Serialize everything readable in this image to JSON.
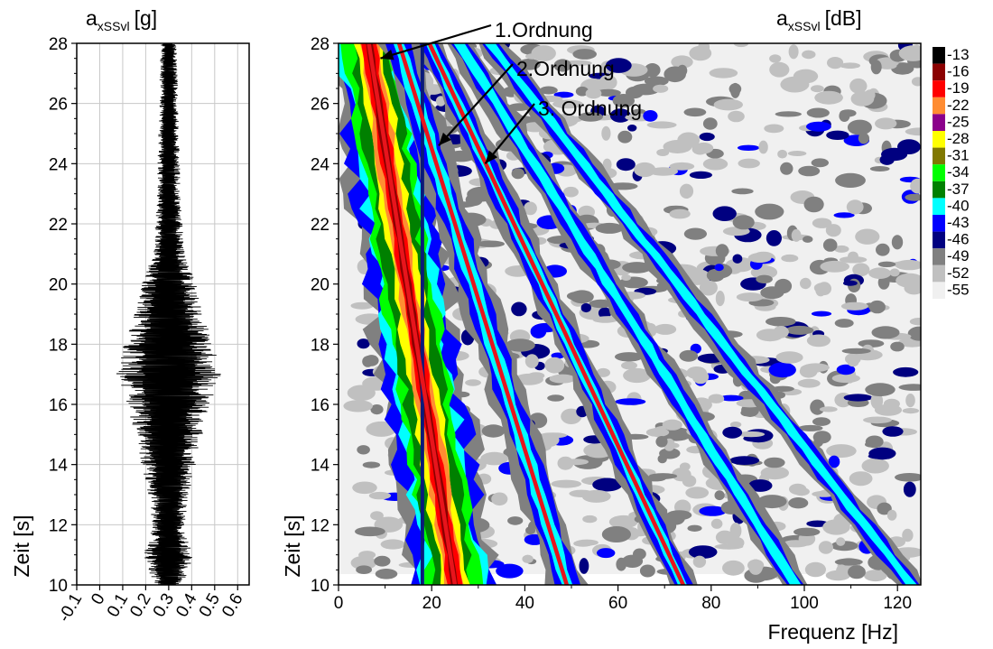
{
  "chart_data": [
    {
      "type": "line",
      "title": "a",
      "title_sub": "xSSvl",
      "title_unit": "[g]",
      "ylabel": "Zeit [s]",
      "xlabel": "",
      "xlim": [
        -0.1,
        0.65
      ],
      "ylim": [
        10,
        28
      ],
      "x_ticks": [
        "-0.1",
        "0",
        "0.1",
        "0.2",
        "0.3",
        "0.4",
        "0.5",
        "0.6"
      ],
      "y_ticks": [
        "10",
        "12",
        "14",
        "16",
        "18",
        "20",
        "22",
        "24",
        "26",
        "28"
      ],
      "grid": true,
      "series": [
        {
          "style": "oscillating signal trace",
          "center_x": 0.3,
          "envelope_halfwidth": [
            {
              "t": 10.0,
              "w": 0.06
            },
            {
              "t": 10.5,
              "w": 0.09
            },
            {
              "t": 11.0,
              "w": 0.11
            },
            {
              "t": 11.5,
              "w": 0.09
            },
            {
              "t": 12.0,
              "w": 0.07
            },
            {
              "t": 13.0,
              "w": 0.09
            },
            {
              "t": 14.0,
              "w": 0.12
            },
            {
              "t": 15.0,
              "w": 0.15
            },
            {
              "t": 16.0,
              "w": 0.18
            },
            {
              "t": 17.0,
              "w": 0.23
            },
            {
              "t": 18.0,
              "w": 0.2
            },
            {
              "t": 19.0,
              "w": 0.15
            },
            {
              "t": 20.0,
              "w": 0.12
            },
            {
              "t": 21.0,
              "w": 0.07
            },
            {
              "t": 22.0,
              "w": 0.06
            },
            {
              "t": 23.0,
              "w": 0.05
            },
            {
              "t": 24.0,
              "w": 0.05
            },
            {
              "t": 25.0,
              "w": 0.045
            },
            {
              "t": 26.0,
              "w": 0.04
            },
            {
              "t": 27.0,
              "w": 0.04
            },
            {
              "t": 28.0,
              "w": 0.035
            }
          ]
        }
      ]
    },
    {
      "type": "heatmap",
      "title": "a",
      "title_sub": "xSSvl",
      "title_unit": "[dB]",
      "xlabel": "Frequenz [Hz]",
      "ylabel": "Zeit [s]",
      "xlim": [
        0,
        125
      ],
      "ylim": [
        10,
        28
      ],
      "x_ticks": [
        "0",
        "20",
        "40",
        "60",
        "80",
        "100",
        "120"
      ],
      "y_ticks": [
        "10",
        "12",
        "14",
        "16",
        "18",
        "20",
        "22",
        "24",
        "26",
        "28"
      ],
      "grid": false,
      "legend": {
        "placement": "right",
        "levels": [
          "-13",
          "-16",
          "-19",
          "-22",
          "-25",
          "-28",
          "-31",
          "-34",
          "-37",
          "-40",
          "-43",
          "-46",
          "-49",
          "-52",
          "-55"
        ],
        "colors": [
          "#000000",
          "#8b0000",
          "#ff0000",
          "#ff8c32",
          "#8b008b",
          "#ffff00",
          "#807800",
          "#00ff00",
          "#008000",
          "#00ffff",
          "#0000ff",
          "#000080",
          "#808080",
          "#c0c0c0",
          "#f0f0f0"
        ]
      },
      "order_lines": [
        {
          "label": "1.Ordnung",
          "points": [
            [
              6.5,
              28
            ],
            [
              25,
              10
            ]
          ]
        },
        {
          "label": "2.Ordnung",
          "points": [
            [
              13,
              28
            ],
            [
              49,
              10
            ]
          ]
        },
        {
          "label": "3. Ordnung",
          "points": [
            [
              19.5,
              28
            ],
            [
              74,
              10
            ]
          ]
        }
      ],
      "marker_line": {
        "x": 18,
        "color": "#0a1a7a"
      },
      "ridges": [
        {
          "order": 1,
          "from": [
            6.5,
            28
          ],
          "to": [
            25,
            10
          ],
          "halfwidth_hz": 6.5
        },
        {
          "order": 2,
          "from": [
            13,
            28
          ],
          "to": [
            49,
            10
          ],
          "halfwidth_hz": 2.5
        },
        {
          "order": 3,
          "from": [
            19.5,
            28
          ],
          "to": [
            74,
            10
          ],
          "halfwidth_hz": 2.0
        },
        {
          "order": 4,
          "from": [
            26,
            28
          ],
          "to": [
            98,
            10
          ],
          "halfwidth_hz": 2.0
        },
        {
          "order": 5,
          "from": [
            32.5,
            28
          ],
          "to": [
            123,
            10
          ],
          "halfwidth_hz": 2.0
        }
      ]
    }
  ]
}
